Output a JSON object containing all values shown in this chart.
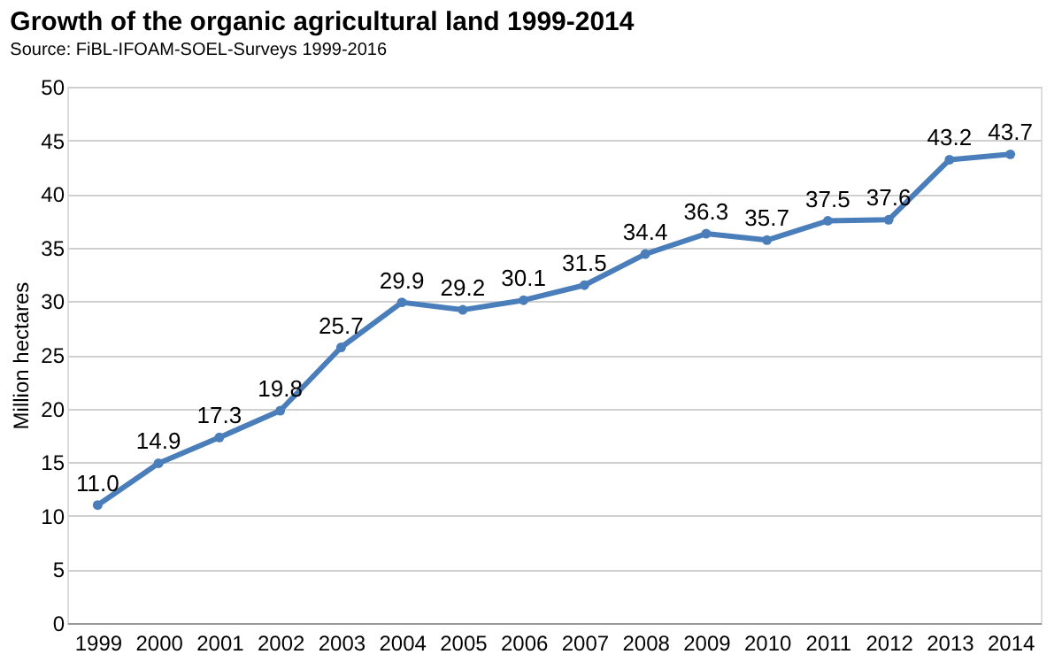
{
  "chart_data": {
    "type": "line",
    "title": "Growth of the organic agricultural land 1999-2014",
    "subtitle": "Source: FiBL-IFOAM-SOEL-Surveys 1999-2016",
    "ylabel": "Million hectares",
    "categories": [
      "1999",
      "2000",
      "2001",
      "2002",
      "2003",
      "2004",
      "2005",
      "2006",
      "2007",
      "2008",
      "2009",
      "2010",
      "2011",
      "2012",
      "2013",
      "2014"
    ],
    "series": [
      {
        "color": "#4a7ebb",
        "values": [
          11.0,
          14.9,
          17.3,
          19.8,
          25.7,
          29.9,
          29.2,
          30.1,
          31.5,
          34.4,
          36.3,
          35.7,
          37.5,
          37.6,
          43.2,
          43.7
        ],
        "value_labels": [
          "11.0",
          "14.9",
          "17.3",
          "19.8",
          "25.7",
          "29.9",
          "29.2",
          "30.1",
          "31.5",
          "34.4",
          "36.3",
          "35.7",
          "37.5",
          "37.6",
          "43.2",
          "43.7"
        ]
      }
    ],
    "ylim": [
      0,
      50
    ],
    "yticks": [
      0,
      5,
      10,
      15,
      20,
      25,
      30,
      35,
      40,
      45,
      50
    ],
    "grid": "y",
    "marker": "circle",
    "line_style": "solid"
  }
}
